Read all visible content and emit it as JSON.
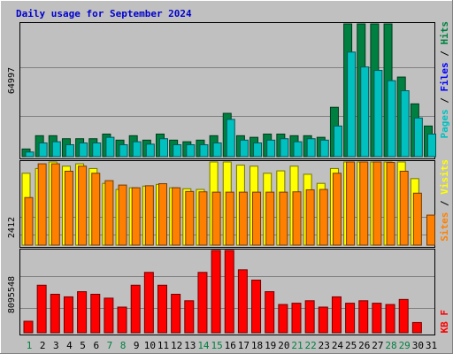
{
  "title": "Daily usage for September 2024",
  "colors": {
    "background": "#c0c0c0",
    "title": "#0000cc",
    "pages": "#00c0c0",
    "files": "#0000ff",
    "hits": "#008040",
    "sites": "#ff8000",
    "visits": "#ffff00",
    "kbf": "#ff0000",
    "weekend": "#008040",
    "weekday": "#000000"
  },
  "right_labels": {
    "top": [
      {
        "text": "Pages",
        "color": "#00c0c0"
      },
      {
        "text": " / ",
        "color": "#000000"
      },
      {
        "text": "Files",
        "color": "#0000ff"
      },
      {
        "text": " / ",
        "color": "#000000"
      },
      {
        "text": "Hits",
        "color": "#008040"
      }
    ],
    "middle": [
      {
        "text": "Sites",
        "color": "#ff8000"
      },
      {
        "text": " / ",
        "color": "#000000"
      },
      {
        "text": "Visits",
        "color": "#ffff00"
      }
    ],
    "bottom": [
      {
        "text": "KB F",
        "color": "#ff0000"
      }
    ]
  },
  "chart_data": [
    {
      "type": "bar",
      "panel": "top",
      "ytick_label": "64997",
      "ymax": 64997,
      "categories": [
        "1",
        "2",
        "3",
        "4",
        "5",
        "6",
        "7",
        "8",
        "9",
        "10",
        "11",
        "12",
        "13",
        "14",
        "15",
        "16",
        "17",
        "18",
        "19",
        "20",
        "21",
        "22",
        "23",
        "24",
        "25",
        "26",
        "27",
        "28",
        "29",
        "30",
        "31"
      ],
      "weekend_days": [
        "1",
        "7",
        "8",
        "14",
        "15",
        "21",
        "22",
        "28",
        "29"
      ],
      "series": [
        {
          "name": "Hits",
          "color": "#008040",
          "values": [
            3800,
            10400,
            10400,
            8900,
            8900,
            8900,
            11200,
            8200,
            10400,
            8200,
            11200,
            8200,
            7400,
            8200,
            10400,
            21500,
            10400,
            9600,
            11200,
            11200,
            10400,
            10400,
            9600,
            24500,
            68700,
            75400,
            71700,
            70200,
            39500,
            26200,
            15200
          ]
        },
        {
          "name": "Files",
          "color": "#0000ff",
          "values": [
            0,
            0,
            0,
            0,
            0,
            0,
            0,
            0,
            0,
            0,
            0,
            0,
            0,
            0,
            0,
            0,
            0,
            0,
            0,
            0,
            0,
            0,
            0,
            0,
            0,
            0,
            0,
            0,
            0,
            0,
            0
          ]
        },
        {
          "name": "Pages",
          "color": "#00c0c0",
          "values": [
            2300,
            6800,
            7400,
            5900,
            6800,
            6800,
            9600,
            5900,
            7400,
            6200,
            8900,
            5900,
            5900,
            5900,
            6800,
            18500,
            8200,
            6800,
            8200,
            8900,
            7400,
            8900,
            8200,
            15200,
            51900,
            44500,
            42800,
            37700,
            32700,
            19200,
            11200
          ]
        }
      ]
    },
    {
      "type": "bar",
      "panel": "middle",
      "ytick_label": "2412",
      "ymax": 2412,
      "categories": [
        "1",
        "2",
        "3",
        "4",
        "5",
        "6",
        "7",
        "8",
        "9",
        "10",
        "11",
        "12",
        "13",
        "14",
        "15",
        "16",
        "17",
        "18",
        "19",
        "20",
        "21",
        "22",
        "23",
        "24",
        "25",
        "26",
        "27",
        "28",
        "29",
        "30",
        "31"
      ],
      "series": [
        {
          "name": "Visits",
          "color": "#ffff00",
          "values": [
            2130,
            2270,
            2550,
            2340,
            2410,
            2270,
            1830,
            1650,
            1700,
            1750,
            1800,
            1700,
            1670,
            1650,
            2480,
            2930,
            2370,
            2340,
            2130,
            2200,
            2340,
            2100,
            1830,
            2270,
            3900,
            5660,
            5480,
            4200,
            5120,
            1970,
            0
          ]
        },
        {
          "name": "Sites",
          "color": "#ff8000",
          "values": [
            1410,
            2410,
            2410,
            2190,
            2340,
            2130,
            1910,
            1780,
            1700,
            1760,
            1820,
            1700,
            1590,
            1580,
            1570,
            1570,
            1570,
            1570,
            1570,
            1570,
            1580,
            1640,
            1650,
            2130,
            2600,
            2960,
            2700,
            2450,
            2190,
            1540,
            890
          ]
        }
      ]
    },
    {
      "type": "bar",
      "panel": "bottom",
      "ytick_label": "8095548",
      "ymax": 8095548,
      "categories": [
        "1",
        "2",
        "3",
        "4",
        "5",
        "6",
        "7",
        "8",
        "9",
        "10",
        "11",
        "12",
        "13",
        "14",
        "15",
        "16",
        "17",
        "18",
        "19",
        "20",
        "21",
        "22",
        "23",
        "24",
        "25",
        "26",
        "27",
        "28",
        "29",
        "30",
        "31"
      ],
      "series": [
        {
          "name": "KB F",
          "color": "#ff0000",
          "values": [
            1160000,
            4780000,
            3870000,
            3610000,
            4130000,
            3870000,
            3480000,
            2580000,
            4780000,
            6070000,
            4780000,
            3870000,
            3220000,
            6070000,
            11360000,
            12400000,
            6330000,
            5290000,
            4130000,
            2840000,
            2970000,
            3220000,
            2580000,
            3610000,
            2970000,
            3220000,
            2970000,
            2840000,
            3350000,
            1030000,
            0
          ]
        }
      ]
    }
  ]
}
